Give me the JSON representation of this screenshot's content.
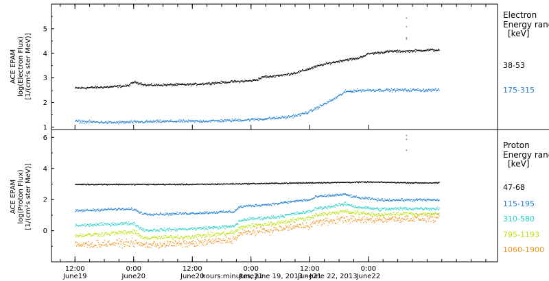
{
  "chart_data": [
    {
      "type": "scatter",
      "panel": "electron",
      "ylabel_lines": [
        "ACE EPAM",
        "log(Electron Flux)",
        "[1/(cm²s ster MeV)]"
      ],
      "yticks": [
        "1",
        "2",
        "3",
        "4",
        "5"
      ],
      "ylim": [
        0.9,
        6.0
      ],
      "legend_title": [
        "Electron",
        "Energy range",
        "[keV]"
      ],
      "series": [
        {
          "name": "38-53",
          "color": "#000000",
          "x": [
            0,
            0.3,
            0.45,
            0.5,
            0.55,
            0.6,
            1.0,
            1.3,
            1.5,
            1.55,
            1.6,
            1.62,
            1.64,
            1.67,
            1.7,
            1.8,
            1.9,
            2.0,
            2.1,
            2.2,
            2.3,
            2.4,
            2.5,
            2.6,
            2.7,
            2.8,
            2.9,
            3.0,
            3.1
          ],
          "y": [
            2.6,
            2.65,
            2.7,
            2.85,
            2.8,
            2.72,
            2.75,
            2.85,
            2.9,
            2.95,
            3.05,
            3.08,
            3.05,
            3.07,
            3.1,
            3.15,
            3.25,
            3.4,
            3.55,
            3.65,
            3.75,
            3.8,
            4.0,
            4.05,
            4.1,
            4.1,
            4.12,
            4.15,
            4.15
          ],
          "noise": 0.04,
          "count": 700
        },
        {
          "name": "175-315",
          "color": "#1f7fd1",
          "x": [
            0,
            0.3,
            0.5,
            0.8,
            1.0,
            1.3,
            1.5,
            1.7,
            1.8,
            1.9,
            2.0,
            2.1,
            2.2,
            2.25,
            2.3,
            2.4,
            2.5,
            2.6,
            2.7,
            2.8,
            2.9,
            3.0,
            3.1
          ],
          "y": [
            1.25,
            1.2,
            1.22,
            1.25,
            1.25,
            1.28,
            1.32,
            1.38,
            1.42,
            1.5,
            1.65,
            1.9,
            2.15,
            2.3,
            2.45,
            2.5,
            2.52,
            2.52,
            2.52,
            2.52,
            2.52,
            2.52,
            2.52
          ],
          "noise": 0.05,
          "count": 700
        }
      ],
      "outliers": [
        [
          2.82,
          5.45
        ],
        [
          2.82,
          5.1
        ],
        [
          2.82,
          4.65
        ],
        [
          2.82,
          4.6
        ]
      ]
    },
    {
      "type": "scatter",
      "panel": "proton",
      "ylabel_lines": [
        "ACE EPAM",
        "log(Proton Flux)",
        "[1/(cm²s ster MeV)]"
      ],
      "yticks": [
        "0",
        "2",
        "4",
        "6"
      ],
      "ylim": [
        -2.0,
        6.5
      ],
      "legend_title": [
        "Proton",
        "Energy range",
        "[keV]"
      ],
      "series": [
        {
          "name": "47-68",
          "color": "#000000",
          "x": [
            0,
            0.5,
            1.0,
            1.5,
            2.0,
            2.5,
            2.9,
            3.1
          ],
          "y": [
            3.0,
            3.0,
            3.0,
            3.05,
            3.1,
            3.15,
            3.1,
            3.1
          ],
          "noise": 0.03,
          "count": 650
        },
        {
          "name": "115-195",
          "color": "#1f7fd1",
          "x": [
            0,
            0.3,
            0.5,
            0.55,
            0.6,
            0.8,
            1.0,
            1.35,
            1.4,
            1.45,
            1.7,
            1.9,
            2.0,
            2.05,
            2.2,
            2.3,
            2.4,
            2.6,
            2.8,
            3.1
          ],
          "y": [
            1.3,
            1.4,
            1.4,
            1.2,
            1.1,
            1.1,
            1.15,
            1.25,
            1.55,
            1.6,
            1.75,
            1.95,
            2.0,
            2.2,
            2.3,
            2.35,
            2.15,
            2.0,
            2.0,
            2.0
          ],
          "noise": 0.07,
          "count": 650
        },
        {
          "name": "310-580",
          "color": "#20d0c8",
          "x": [
            0,
            0.3,
            0.5,
            0.55,
            0.6,
            0.8,
            1.0,
            1.35,
            1.4,
            1.45,
            1.7,
            1.9,
            2.0,
            2.05,
            2.2,
            2.3,
            2.4,
            2.6,
            2.8,
            3.1
          ],
          "y": [
            0.35,
            0.45,
            0.5,
            0.2,
            0.05,
            0.1,
            0.15,
            0.3,
            0.65,
            0.75,
            0.9,
            1.15,
            1.25,
            1.45,
            1.6,
            1.75,
            1.55,
            1.4,
            1.45,
            1.45
          ],
          "noise": 0.09,
          "count": 650
        },
        {
          "name": "795-1193",
          "color": "#b5e000",
          "x": [
            0,
            0.3,
            0.5,
            0.55,
            0.6,
            0.8,
            1.0,
            1.35,
            1.4,
            1.45,
            1.7,
            1.9,
            2.0,
            2.05,
            2.2,
            2.3,
            2.4,
            2.6,
            2.8,
            3.1
          ],
          "y": [
            -0.3,
            -0.15,
            -0.05,
            -0.3,
            -0.45,
            -0.4,
            -0.35,
            -0.1,
            0.2,
            0.3,
            0.5,
            0.75,
            0.85,
            1.05,
            1.15,
            1.3,
            1.15,
            1.05,
            1.1,
            1.1
          ],
          "noise": 0.12,
          "count": 650
        },
        {
          "name": "1060-1900",
          "color": "#f0901a",
          "x": [
            0,
            0.3,
            0.5,
            0.55,
            0.6,
            0.8,
            1.0,
            1.35,
            1.4,
            1.45,
            1.7,
            1.9,
            2.0,
            2.05,
            2.2,
            2.3,
            2.4,
            2.6,
            2.8,
            3.1
          ],
          "y": [
            -0.9,
            -0.8,
            -0.75,
            -0.85,
            -0.9,
            -0.85,
            -0.8,
            -0.55,
            -0.2,
            -0.1,
            0.1,
            0.3,
            0.4,
            0.55,
            0.65,
            0.8,
            0.7,
            0.75,
            0.8,
            0.8
          ],
          "noise": 0.2,
          "count": 650
        }
      ],
      "outliers": [
        [
          2.82,
          6.15
        ],
        [
          2.82,
          5.9
        ],
        [
          2.82,
          5.2
        ]
      ]
    }
  ],
  "xaxis": {
    "title": "hours:minutes, June 19, 2013 - June 22, 2013",
    "xlim": [
      -0.2,
      3.6
    ],
    "ticks": [
      {
        "x": 0.0,
        "label": "12:00",
        "sublabel": "June19"
      },
      {
        "x": 0.5,
        "label": "0:00",
        "sublabel": "June20"
      },
      {
        "x": 1.0,
        "label": "12:00",
        "sublabel": "June20"
      },
      {
        "x": 1.5,
        "label": "0:00",
        "sublabel": "June21"
      },
      {
        "x": 2.0,
        "label": "12:00",
        "sublabel": "June21"
      },
      {
        "x": 2.5,
        "label": "0:00",
        "sublabel": "June22"
      }
    ]
  }
}
